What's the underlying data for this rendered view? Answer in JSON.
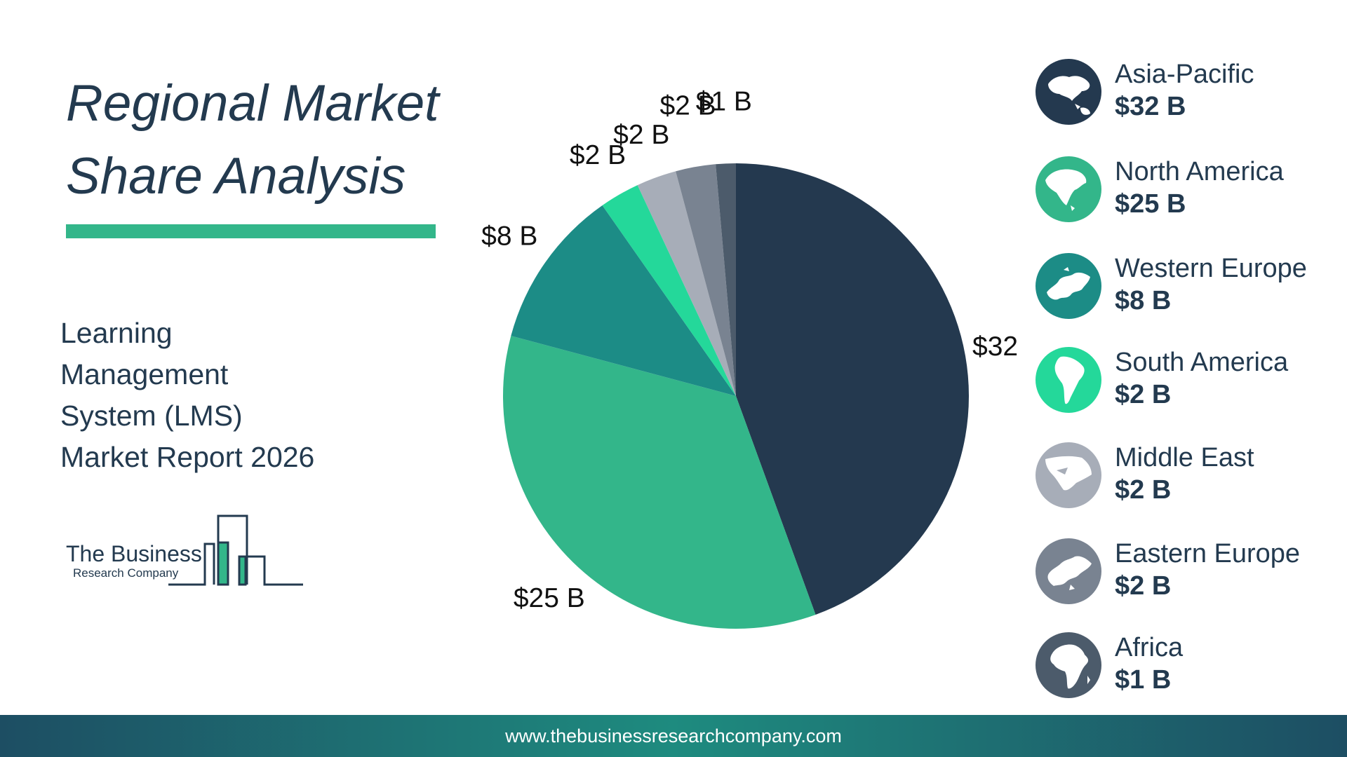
{
  "title": {
    "line1": "Regional Market",
    "line2": "Share Analysis"
  },
  "subtitle": {
    "line1": "Learning",
    "line2": "Management",
    "line3": "System (LMS)",
    "line4": "Market Report 2026"
  },
  "logo": {
    "line1": "The Business",
    "line2": "Research Company"
  },
  "footer": {
    "url": "www.thebusinessresearchcompany.com"
  },
  "colors": {
    "title": "#233a4f",
    "accent": "#33b68a"
  },
  "chart_data": {
    "type": "pie",
    "title": "Regional Market Share Analysis",
    "unit": "$ B",
    "categories": [
      "Asia-Pacific",
      "North America",
      "Western Europe",
      "South America",
      "Middle East",
      "Eastern Europe",
      "Africa"
    ],
    "values": [
      32,
      25,
      8,
      2,
      2,
      2,
      1
    ],
    "data_labels": [
      "$32 B",
      "$25 B",
      "$8 B",
      "$2 B",
      "$2 B",
      "$2 B",
      "$1 B"
    ],
    "legend_values": [
      "$32 B",
      "$25 B",
      "$8 B",
      "$2 B",
      "$2 B",
      "$2 B",
      "$1 B"
    ],
    "colors": [
      "#24394f",
      "#33b68a",
      "#1c8c86",
      "#24d89a",
      "#a7adb8",
      "#798391",
      "#4c5b6b"
    ],
    "icons": [
      "asia-pacific-map-icon",
      "north-america-map-icon",
      "western-europe-map-icon",
      "south-america-map-icon",
      "middle-east-map-icon",
      "eastern-europe-map-icon",
      "africa-map-icon"
    ],
    "start_angle": "top, clockwise",
    "legend_position": "right"
  }
}
